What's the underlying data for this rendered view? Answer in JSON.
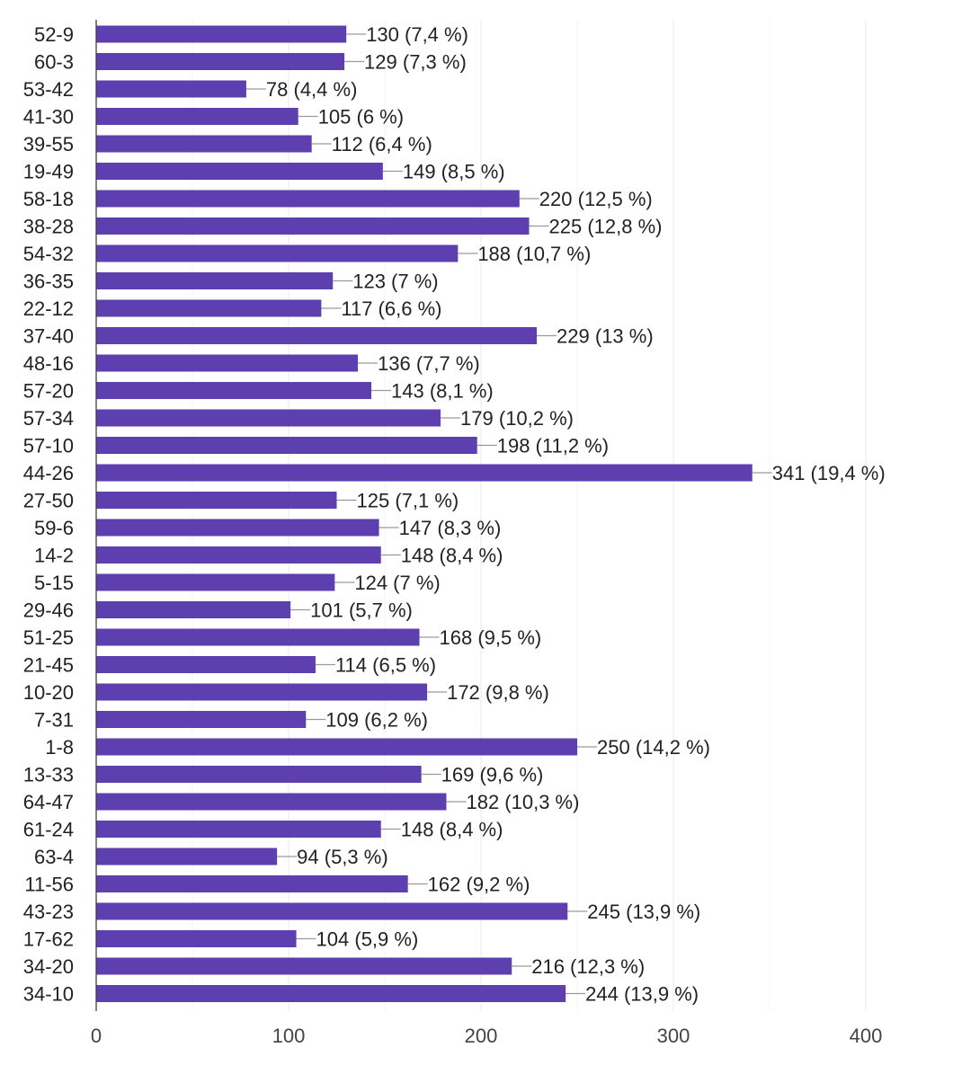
{
  "chart_data": {
    "type": "bar",
    "orientation": "horizontal",
    "categories": [
      "52-9",
      "60-3",
      "53-42",
      "41-30",
      "39-55",
      "19-49",
      "58-18",
      "38-28",
      "54-32",
      "36-35",
      "22-12",
      "37-40",
      "48-16",
      "57-20",
      "57-34",
      "57-10",
      "44-26",
      "27-50",
      "59-6",
      "14-2",
      "5-15",
      "29-46",
      "51-25",
      "21-45",
      "10-20",
      "7-31",
      "1-8",
      "13-33",
      "64-47",
      "61-24",
      "63-4",
      "11-56",
      "43-23",
      "17-62",
      "34-20",
      "34-10"
    ],
    "values": [
      130,
      129,
      78,
      105,
      112,
      149,
      220,
      225,
      188,
      123,
      117,
      229,
      136,
      143,
      179,
      198,
      341,
      125,
      147,
      148,
      124,
      101,
      168,
      114,
      172,
      109,
      250,
      169,
      182,
      148,
      94,
      162,
      245,
      104,
      216,
      244
    ],
    "labels": [
      "130 (7,4 %)",
      "129 (7,3 %)",
      "78 (4,4 %)",
      "105 (6 %)",
      "112 (6,4 %)",
      "149 (8,5 %)",
      "220 (12,5 %)",
      "225 (12,8 %)",
      "188 (10,7 %)",
      "123 (7 %)",
      "117 (6,6 %)",
      "229 (13 %)",
      "136 (7,7 %)",
      "143 (8,1 %)",
      "179 (10,2 %)",
      "198 (11,2 %)",
      "341 (19,4 %)",
      "125 (7,1 %)",
      "147 (8,3 %)",
      "148 (8,4 %)",
      "124 (7 %)",
      "101 (5,7 %)",
      "168 (9,5 %)",
      "114 (6,5 %)",
      "172 (9,8 %)",
      "109 (6,2 %)",
      "250 (14,2 %)",
      "169 (9,6 %)",
      "182 (10,3 %)",
      "148 (8,4 %)",
      "94 (5,3 %)",
      "162 (9,2 %)",
      "245 (13,9 %)",
      "104 (5,9 %)",
      "216 (12,3 %)",
      "244 (13,9 %)"
    ],
    "xlim": [
      0,
      400
    ],
    "xticks": [
      0,
      100,
      200,
      300,
      400
    ],
    "grid": true,
    "bar_color": "#5e3fb0",
    "title": "",
    "xlabel": "",
    "ylabel": ""
  }
}
